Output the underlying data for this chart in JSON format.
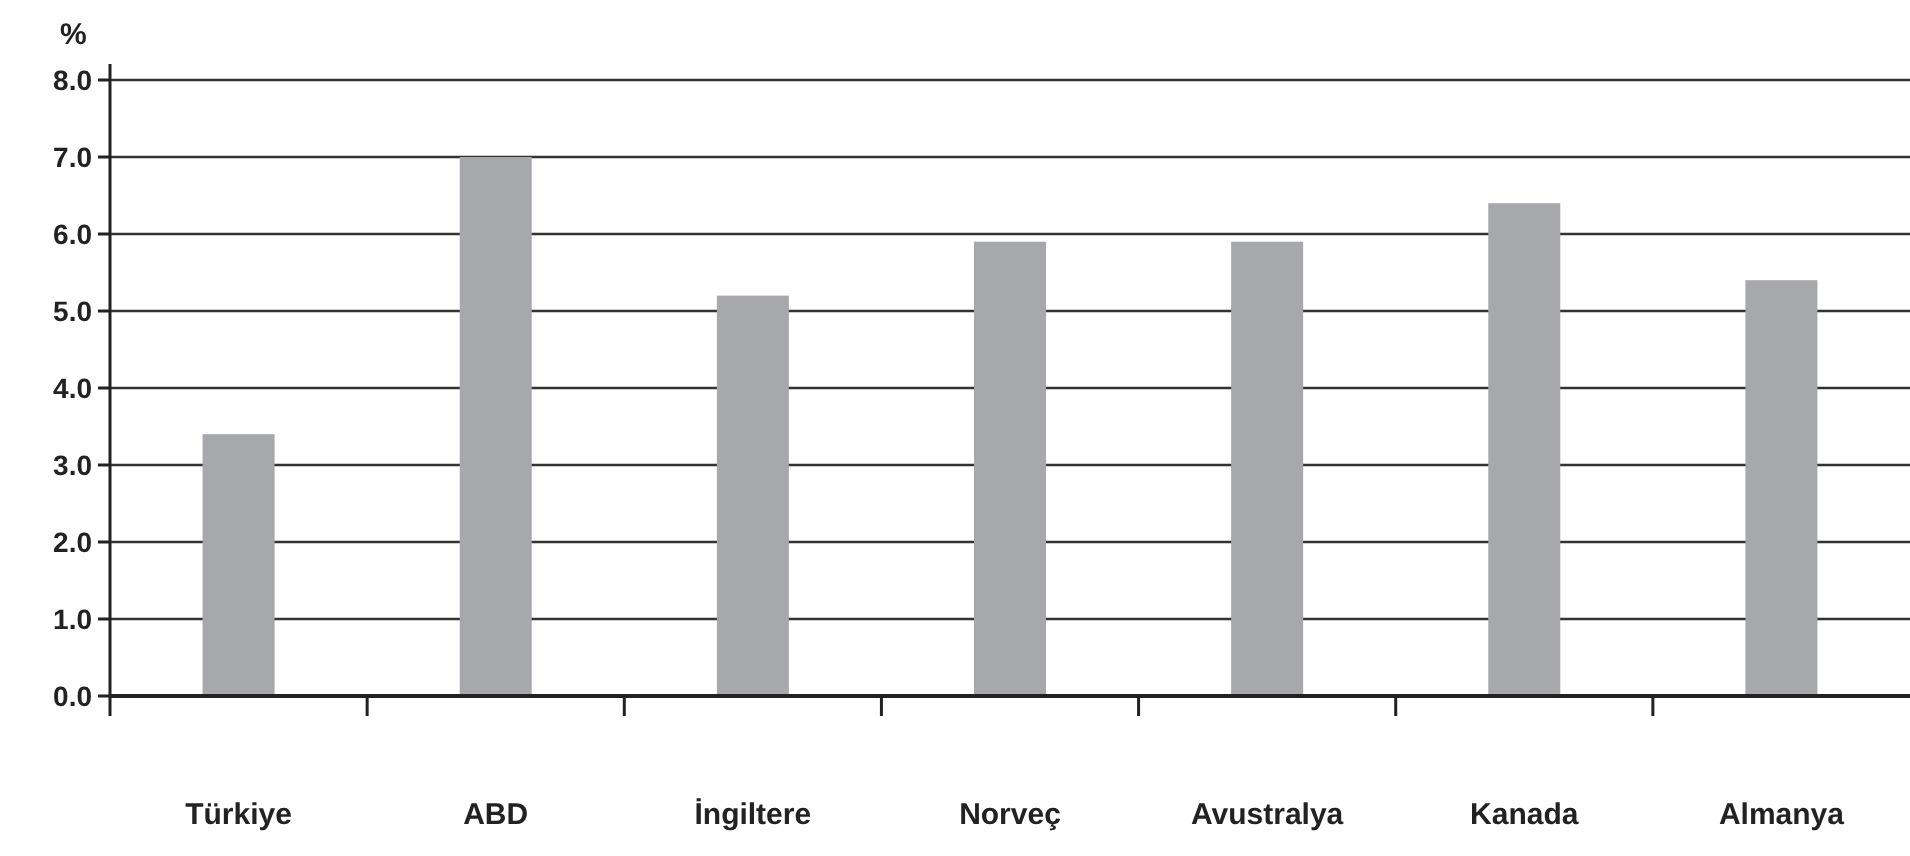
{
  "chart_data": {
    "type": "bar",
    "ylabel": "%",
    "categories": [
      "Türkiye",
      "ABD",
      "İngiltere",
      "Norveç",
      "Avustralya",
      "Kanada",
      "Almanya"
    ],
    "values": [
      3.4,
      7.0,
      5.2,
      5.9,
      5.9,
      6.4,
      5.4
    ],
    "color": "#a7a8ab",
    "ylim": [
      0,
      8
    ],
    "yticks": [
      {
        "value": 0,
        "label": "0.0"
      },
      {
        "value": 1,
        "label": "1.0"
      },
      {
        "value": 2,
        "label": "2.0"
      },
      {
        "value": 3,
        "label": "3.0"
      },
      {
        "value": 4,
        "label": "4.0"
      },
      {
        "value": 5,
        "label": "5.0"
      },
      {
        "value": 6,
        "label": "6.0"
      },
      {
        "value": 7,
        "label": "7.0"
      },
      {
        "value": 8,
        "label": "8.0"
      }
    ],
    "grid": "y"
  }
}
